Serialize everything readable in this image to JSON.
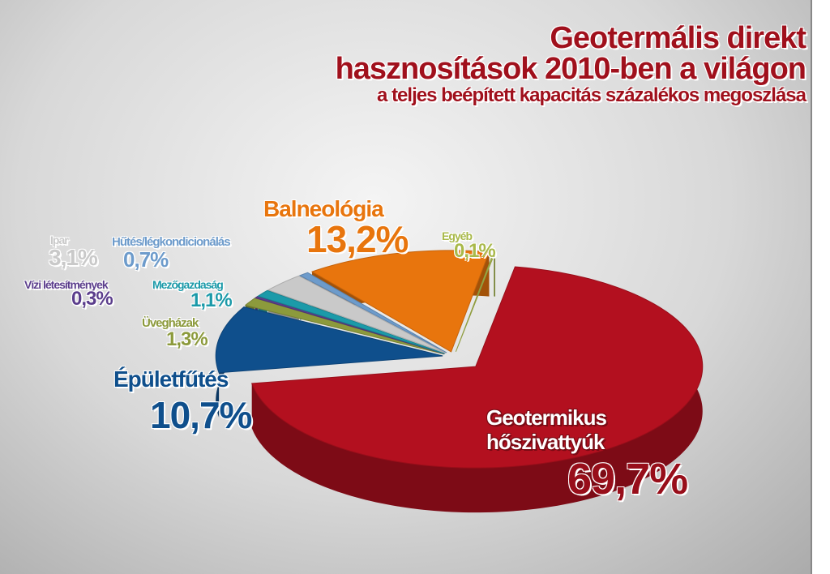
{
  "chart_data": {
    "type": "pie",
    "title": [
      "Geotermális direkt",
      "hasznosítások 2010-ben a világon"
    ],
    "subtitle": "a teljes beépített kapacitás százalékos megoszlása",
    "categories": [
      "Geotermikus hőszivattyúk",
      "Épületfűtés",
      "Üvegházak",
      "Vízi létesítmények",
      "Mezőgazdaság",
      "Ipar",
      "Hűtés/légkondicionálás",
      "Balneológia",
      "Egyéb"
    ],
    "values": [
      69.7,
      10.7,
      1.3,
      0.3,
      1.1,
      3.1,
      0.7,
      13.2,
      0.1
    ],
    "value_labels": [
      "69,7%",
      "10,7%",
      "1,3%",
      "0,3%",
      "1,1%",
      "3,1%",
      "0,7%",
      "13,2%",
      "0,1%"
    ],
    "colors": [
      "#b3101f",
      "#0f4f8c",
      "#8c9a3c",
      "#5b3d8c",
      "#1b9aa9",
      "#c9c9c9",
      "#6d9bcb",
      "#e8750d",
      "#a9b94a"
    ]
  }
}
